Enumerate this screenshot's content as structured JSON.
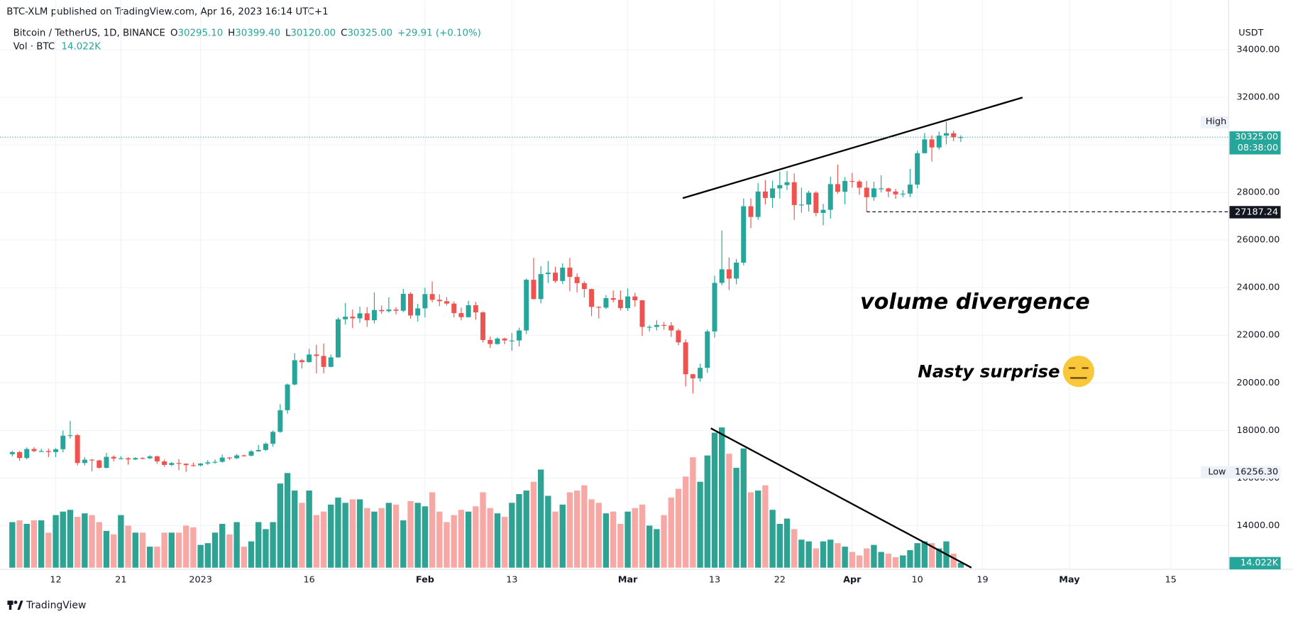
{
  "header": "BTC-XLM published on TradingView.com, Apr 16, 2023 16:14 UTC+1",
  "symbol": "Bitcoin / TetherUS, 1D, BINANCE",
  "ohlc_legend": [
    {
      "key": "O",
      "value": "30295.10"
    },
    {
      "key": "H",
      "value": "30399.40"
    },
    {
      "key": "L",
      "value": "30120.00"
    },
    {
      "key": "C",
      "value": "30325.00"
    }
  ],
  "change": "+29.91 (+0.10%)",
  "volume_legend": {
    "name": "Vol · BTC",
    "value": "14.022K"
  },
  "footer": "TradingView",
  "chart_data": {
    "type": "candlestick",
    "currency": "USDT",
    "open": [
      17000,
      17090,
      16840,
      17220,
      17130,
      17130,
      17090,
      17210,
      17780,
      17800,
      16630,
      16770,
      16740,
      16430,
      16890,
      16820,
      16830,
      16780,
      16840,
      16830,
      16910,
      16700,
      16550,
      16630,
      16600,
      16540,
      16530,
      16610,
      16660,
      16680,
      16860,
      16830,
      16950,
      16940,
      17120,
      17180,
      17440,
      17940,
      18850,
      19930,
      20950,
      20870,
      21190,
      21130,
      20670,
      21070,
      22670,
      22780,
      22710,
      22920,
      22630,
      23060,
      23010,
      23080,
      23030,
      23740,
      22830,
      23130,
      23730,
      23490,
      23430,
      23330,
      22930,
      22760,
      23260,
      22960,
      21800,
      21630,
      21860,
      21780,
      21780,
      22200,
      24330,
      23520,
      24570,
      24630,
      24280,
      24840,
      24450,
      24190,
      23940,
      23190,
      23160,
      23560,
      23490,
      23140,
      23630,
      23470,
      22350,
      22350,
      22430,
      22410,
      22200,
      21700,
      20360,
      20190,
      20630,
      22160,
      24200,
      24770,
      24380,
      25050,
      27420,
      26970,
      28040,
      27770,
      28170,
      28310,
      28430,
      27470,
      27490,
      27990,
      27140,
      27270,
      28350,
      28030,
      28480,
      28460,
      28200,
      27800,
      28170,
      28170,
      28040,
      27920,
      27950,
      28330,
      29650,
      30230,
      29890,
      30390,
      30490,
      30295.1
    ],
    "high": [
      17150,
      17140,
      17290,
      17300,
      17230,
      17240,
      17260,
      18000,
      18400,
      17850,
      16880,
      16800,
      16770,
      17060,
      16950,
      16920,
      16880,
      16870,
      16870,
      16960,
      16940,
      16780,
      16670,
      16790,
      16620,
      16650,
      16630,
      16760,
      16780,
      16990,
      16880,
      17010,
      16990,
      17180,
      17390,
      17490,
      18000,
      19100,
      19970,
      21250,
      21000,
      21430,
      21600,
      21650,
      21190,
      22750,
      23350,
      23080,
      23200,
      23180,
      23800,
      23250,
      23590,
      23180,
      23950,
      23800,
      23320,
      24000,
      24260,
      23720,
      23600,
      23420,
      23160,
      23450,
      23400,
      23000,
      21940,
      21910,
      21900,
      22100,
      22320,
      24380,
      25250,
      24900,
      25120,
      24880,
      25020,
      25250,
      24600,
      24270,
      23960,
      23220,
      23690,
      23880,
      23880,
      23970,
      23780,
      23480,
      22420,
      22630,
      22560,
      22550,
      22270,
      21820,
      20380,
      20800,
      22240,
      24500,
      26400,
      25270,
      25200,
      27750,
      27750,
      28400,
      28520,
      28500,
      28880,
      28900,
      28800,
      28200,
      28080,
      28050,
      27520,
      28660,
      29170,
      28650,
      28820,
      28530,
      28480,
      28450,
      28720,
      28200,
      28150,
      28100,
      28990,
      29750,
      30500,
      30400,
      30560,
      30970,
      30600,
      30399.4
    ],
    "low": [
      16900,
      16720,
      16780,
      17080,
      17090,
      16880,
      16880,
      17080,
      17660,
      16530,
      16530,
      16280,
      16390,
      16400,
      16700,
      16780,
      16560,
      16750,
      16780,
      16790,
      16600,
      16470,
      16500,
      16330,
      16256.3,
      16480,
      16490,
      16550,
      16600,
      16650,
      16750,
      16800,
      16900,
      16910,
      17100,
      17140,
      17320,
      17900,
      18700,
      19890,
      20600,
      20850,
      20400,
      20400,
      20650,
      21050,
      22450,
      22300,
      22520,
      22350,
      22500,
      22900,
      22950,
      22880,
      22960,
      22700,
      22570,
      22750,
      23380,
      23220,
      23250,
      22750,
      22630,
      22740,
      22650,
      21700,
      21470,
      21600,
      21620,
      21350,
      21530,
      22050,
      23500,
      23340,
      24200,
      24200,
      24150,
      23850,
      23800,
      23590,
      22800,
      22700,
      23100,
      23380,
      23040,
      23020,
      23200,
      21970,
      22160,
      22200,
      22230,
      21930,
      21580,
      19850,
      19550,
      20050,
      20420,
      21900,
      24100,
      23900,
      24140,
      24940,
      26500,
      26850,
      27500,
      27350,
      27750,
      28100,
      26850,
      27150,
      27200,
      27000,
      26620,
      26900,
      27950,
      27500,
      28200,
      27900,
      27190,
      27650,
      28000,
      27800,
      27730,
      27800,
      27800,
      28170,
      29630,
      29300,
      29800,
      30020,
      30150,
      30120
    ],
    "close": [
      17090,
      16840,
      17220,
      17130,
      17130,
      17090,
      17210,
      17780,
      17800,
      16630,
      16770,
      16740,
      16430,
      16890,
      16820,
      16830,
      16780,
      16840,
      16830,
      16910,
      16700,
      16550,
      16630,
      16600,
      16540,
      16530,
      16610,
      16660,
      16680,
      16860,
      16830,
      16950,
      16940,
      17120,
      17180,
      17440,
      17940,
      18850,
      19930,
      20950,
      20870,
      21190,
      21130,
      20670,
      21070,
      22670,
      22780,
      22710,
      22920,
      22630,
      23060,
      23010,
      23080,
      23030,
      23740,
      22830,
      23130,
      23730,
      23490,
      23430,
      23330,
      22930,
      22760,
      23260,
      22960,
      21800,
      21630,
      21860,
      21780,
      21780,
      22200,
      24330,
      23520,
      24570,
      24630,
      24280,
      24840,
      24450,
      24190,
      23940,
      23190,
      23160,
      23560,
      23490,
      23140,
      23630,
      23470,
      22350,
      22350,
      22430,
      22410,
      22200,
      21700,
      20360,
      20190,
      20630,
      22160,
      24200,
      24770,
      24380,
      25050,
      27420,
      26970,
      28040,
      27770,
      28170,
      28310,
      28430,
      27470,
      27490,
      27990,
      27140,
      27270,
      28350,
      28030,
      28480,
      28460,
      28200,
      27800,
      28170,
      28170,
      28040,
      27920,
      27950,
      28330,
      29650,
      30230,
      29890,
      30390,
      30490,
      30320,
      30325
    ],
    "volume": [
      130000,
      135000,
      125000,
      135000,
      135000,
      100000,
      150000,
      160000,
      165000,
      145000,
      155000,
      150000,
      130000,
      105000,
      95000,
      150000,
      120000,
      100000,
      100000,
      60000,
      60000,
      100000,
      100000,
      100000,
      120000,
      115000,
      65000,
      70000,
      100000,
      125000,
      95000,
      130000,
      60000,
      75000,
      130000,
      110000,
      130000,
      240000,
      270000,
      220000,
      185000,
      220000,
      150000,
      160000,
      180000,
      200000,
      185000,
      195000,
      195000,
      170000,
      160000,
      170000,
      185000,
      180000,
      135000,
      190000,
      185000,
      175000,
      215000,
      160000,
      130000,
      150000,
      165000,
      160000,
      175000,
      215000,
      170000,
      155000,
      145000,
      185000,
      210000,
      220000,
      245000,
      280000,
      205000,
      160000,
      180000,
      215000,
      220000,
      235000,
      195000,
      185000,
      155000,
      160000,
      125000,
      160000,
      170000,
      180000,
      120000,
      110000,
      150000,
      200000,
      225000,
      260000,
      315000,
      245000,
      320000,
      385000,
      400000,
      325000,
      285000,
      340000,
      215000,
      220000,
      235000,
      165000,
      125000,
      140000,
      110000,
      80000,
      75000,
      55000,
      75000,
      80000,
      70000,
      60000,
      45000,
      35000,
      55000,
      65000,
      45000,
      40000,
      30000,
      35000,
      50000,
      70000,
      75000,
      70000,
      55000,
      75000,
      40000,
      14022
    ],
    "xlim": [
      -1.7,
      168
    ],
    "xticks": [
      {
        "value": 6,
        "label": "12"
      },
      {
        "value": 15,
        "label": "21"
      },
      {
        "value": 26,
        "label": "2023"
      },
      {
        "value": 41,
        "label": "16"
      },
      {
        "value": 57,
        "label": "Feb"
      },
      {
        "value": 69,
        "label": "13"
      },
      {
        "value": 85,
        "label": "Mar"
      },
      {
        "value": 97,
        "label": "13"
      },
      {
        "value": 106,
        "label": "22"
      },
      {
        "value": 116,
        "label": "Apr"
      },
      {
        "value": 125,
        "label": "10"
      },
      {
        "value": 134,
        "label": "19"
      },
      {
        "value": 146,
        "label": "May"
      },
      {
        "value": 160,
        "label": "15"
      }
    ],
    "ylim": [
      12232,
      35040
    ],
    "yticks": [
      {
        "value": 14000,
        "label": "14000.00"
      },
      {
        "value": 16000,
        "label": "16000.00"
      },
      {
        "value": 18000,
        "label": "18000.00"
      },
      {
        "value": 20000,
        "label": "20000.00"
      },
      {
        "value": 22000,
        "label": "22000.00"
      },
      {
        "value": 24000,
        "label": "24000.00"
      },
      {
        "value": 26000,
        "label": "26000.00"
      },
      {
        "value": 28000,
        "label": "28000.00"
      },
      {
        "value": 30000,
        "label": "30000.00"
      },
      {
        "value": 32000,
        "label": "32000.00"
      },
      {
        "value": 34000,
        "label": "34000.00"
      }
    ],
    "volume_lim": [
      0,
      400000
    ],
    "grid": true,
    "up_color": "#26a69a",
    "down_color": "#ef5350",
    "volume_up_color": "#2fa393",
    "volume_down_color": "#f7a8a5",
    "last_price_label": "30325.00",
    "countdown": "08:38:00",
    "level": {
      "value": 27187.24,
      "label": "27187.24"
    },
    "high_tag": "High",
    "low_tag": "Low",
    "low_label": "16256.30",
    "annotations": [
      "volume divergence",
      "Nasty surprise"
    ]
  }
}
